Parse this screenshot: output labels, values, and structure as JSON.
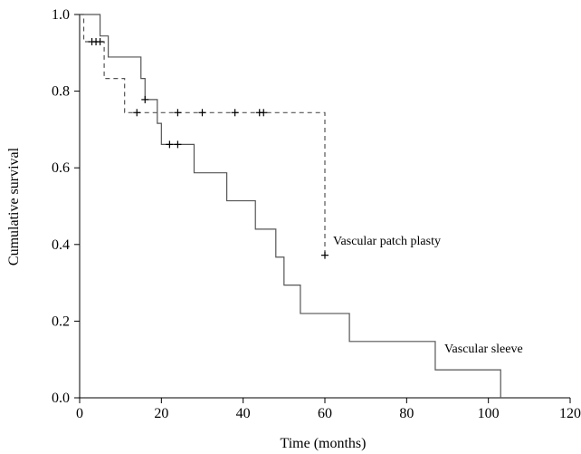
{
  "chart_data": {
    "type": "line",
    "title": "",
    "xlabel": "Time (months)",
    "ylabel": "Cumulative survival",
    "xlim": [
      0,
      120
    ],
    "ylim": [
      0,
      1.0
    ],
    "xticks": [
      0,
      20,
      40,
      60,
      80,
      100,
      120
    ],
    "yticks": [
      0.0,
      0.2,
      0.4,
      0.6,
      0.8,
      1.0
    ],
    "xtick_labels": [
      "0",
      "20",
      "40",
      "60",
      "80",
      "100",
      "120"
    ],
    "ytick_labels": [
      "0.0",
      "0.2",
      "0.4",
      "0.6",
      "0.8",
      "1.0"
    ],
    "grid": false,
    "step": true,
    "series": [
      {
        "name": "Vascular sleeve",
        "style": "solid",
        "color": "#555555",
        "x": [
          0,
          4,
          5,
          7,
          15,
          16,
          18,
          19,
          20,
          24,
          28,
          36,
          43,
          48,
          50,
          54,
          66,
          87,
          103
        ],
        "y": [
          1.0,
          1.0,
          0.944,
          0.889,
          0.833,
          0.778,
          0.778,
          0.716,
          0.661,
          0.661,
          0.587,
          0.514,
          0.44,
          0.367,
          0.294,
          0.22,
          0.147,
          0.073,
          0.0
        ],
        "censored_x": [
          16,
          22,
          24
        ],
        "censored_y": [
          0.778,
          0.661,
          0.661
        ]
      },
      {
        "name": "Vascular patch plasty",
        "style": "dashed",
        "color": "#555555",
        "x": [
          0,
          1,
          6,
          11,
          60
        ],
        "y": [
          1.0,
          0.929,
          0.833,
          0.744,
          0.372
        ],
        "censored_x": [
          3,
          4,
          5,
          14,
          24,
          30,
          38,
          44,
          45,
          60
        ],
        "censored_y": [
          0.929,
          0.929,
          0.929,
          0.744,
          0.744,
          0.744,
          0.744,
          0.744,
          0.744,
          0.372
        ]
      }
    ],
    "annotations": [
      {
        "text": "Vascular patch plasty",
        "x": 62,
        "y": 0.41
      },
      {
        "text": "Vascular sleeve",
        "x": 89,
        "y": 0.13
      }
    ]
  }
}
